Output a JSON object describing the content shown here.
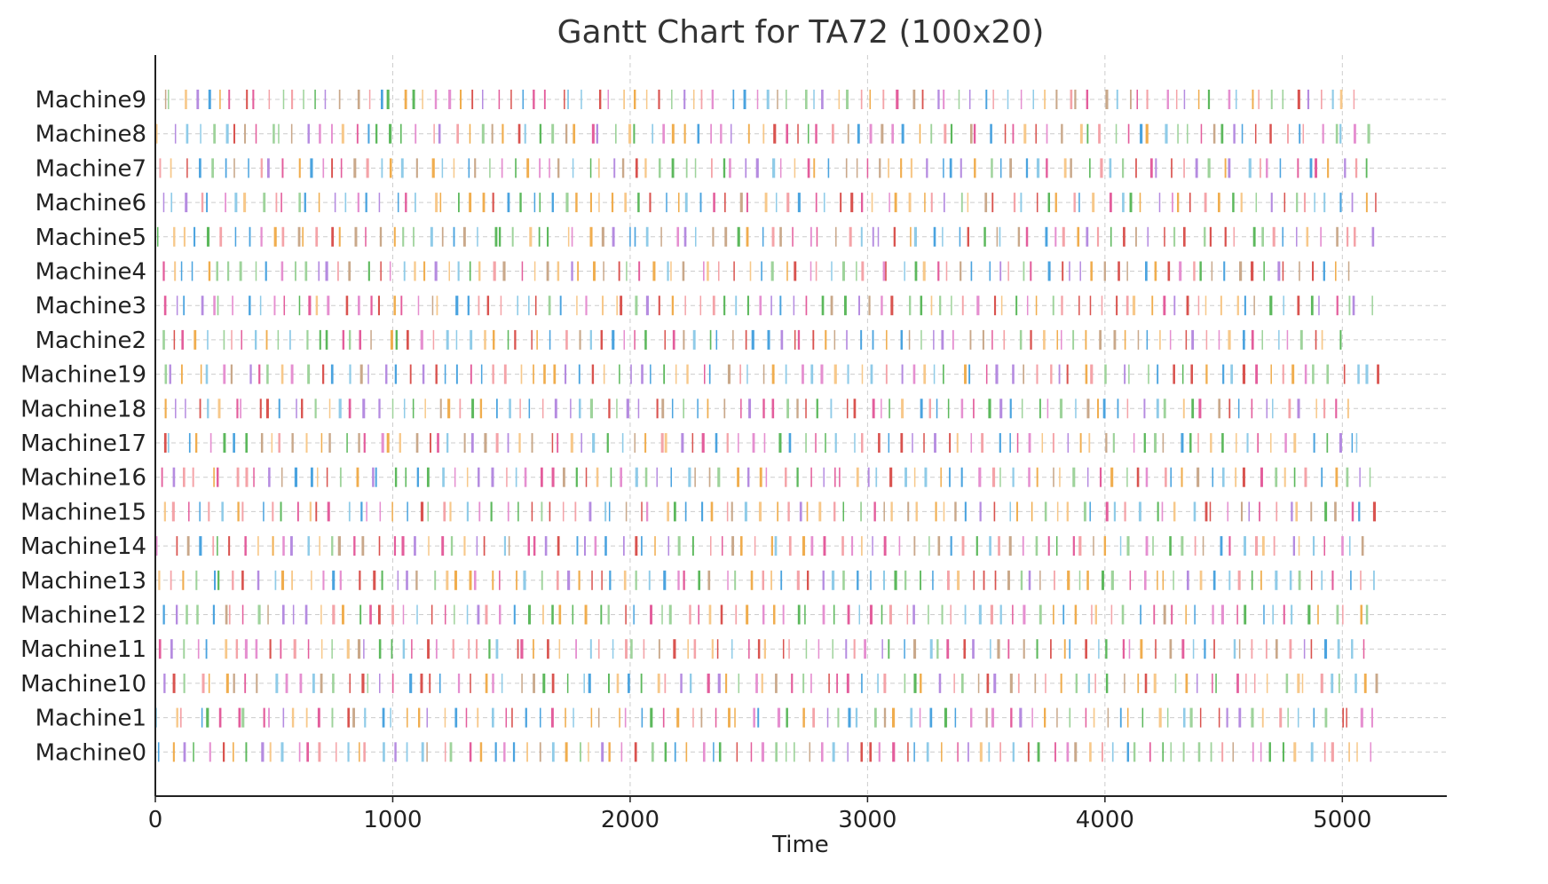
{
  "chart_data": {
    "type": "gantt",
    "title": "Gantt Chart for TA72 (100x20)",
    "xlabel": "Time",
    "ylabel": "",
    "xlim": [
      0,
      5440
    ],
    "xticks": [
      0,
      1000,
      2000,
      3000,
      4000,
      5000
    ],
    "grid": "dashed, both axes",
    "legend": "none",
    "machines": [
      "Machine9",
      "Machine8",
      "Machine7",
      "Machine6",
      "Machine5",
      "Machine4",
      "Machine3",
      "Machine2",
      "Machine19",
      "Machine18",
      "Machine17",
      "Machine16",
      "Machine15",
      "Machine14",
      "Machine13",
      "Machine12",
      "Machine11",
      "Machine10",
      "Machine1",
      "Machine0"
    ],
    "machine_end_times": [
      5090,
      5140,
      5130,
      5180,
      5150,
      5040,
      5140,
      5010,
      5180,
      5050,
      5100,
      5140,
      5160,
      5110,
      5160,
      5140,
      5120,
      5190,
      5170,
      5150
    ],
    "palette": [
      "#f4a3a8",
      "#9ed39b",
      "#f7c88a",
      "#8fcbe8",
      "#e58fd0",
      "#c9a88a",
      "#d9534f",
      "#5cb85c",
      "#4aa3df",
      "#b58be0",
      "#f0ad4e",
      "#e35d9c"
    ],
    "operations_per_machine": 100
  }
}
